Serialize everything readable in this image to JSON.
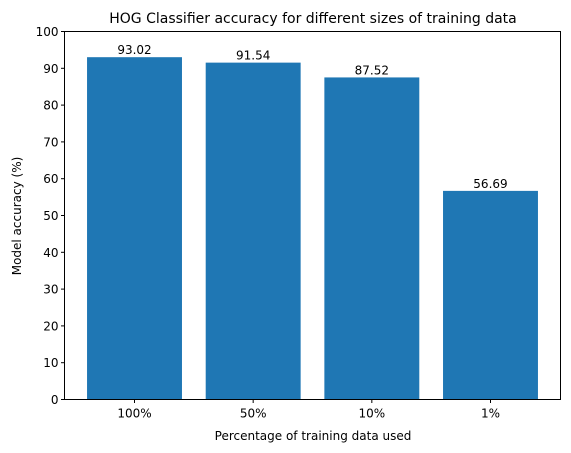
{
  "chart_data": {
    "type": "bar",
    "title": "HOG Classifier accuracy for different sizes of training data",
    "xlabel": "Percentage of training data used",
    "ylabel": "Model accuracy (%)",
    "categories": [
      "100%",
      "50%",
      "10%",
      "1%"
    ],
    "values": [
      93.02,
      91.54,
      87.52,
      56.69
    ],
    "value_labels": [
      "93.02",
      "91.54",
      "87.52",
      "56.69"
    ],
    "ylim": [
      0,
      100
    ],
    "yticks": [
      0,
      10,
      20,
      30,
      40,
      50,
      60,
      70,
      80,
      90,
      100
    ],
    "ytick_labels": [
      "0",
      "10",
      "20",
      "30",
      "40",
      "50",
      "60",
      "70",
      "80",
      "90",
      "100"
    ],
    "grid": false,
    "legend": "none",
    "bar_color": "#1f77b4"
  }
}
